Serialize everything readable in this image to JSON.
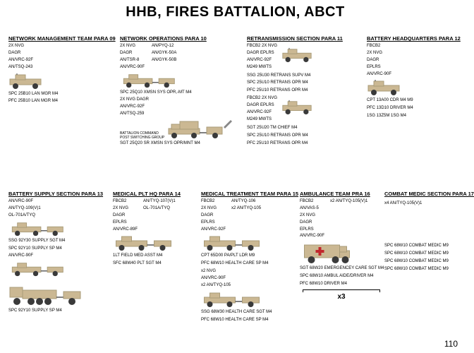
{
  "title": "HHB, FIRES BATTALION, ABCT",
  "page_number": "110",
  "colors": {
    "vehicle_body": "#cbb893",
    "vehicle_shadow": "#a89b78",
    "wheel": "#3a3a3a",
    "cross": "#c1272d",
    "bg": "#ffffff",
    "text": "#000000"
  },
  "sections": {
    "nmt": {
      "heading": "NETWORK MANAGEMENT TEAM PARA 09",
      "equip": [
        "2X NVG",
        "DAGR",
        "AN/VRC-92F",
        "AN/TSQ-243"
      ],
      "units": [
        {
          "vehicle": "humvee",
          "pers": [
            "SPC 25B10 LAN MGR M4",
            "PFC 25B10 LAN MGR M4"
          ]
        }
      ]
    },
    "nops": {
      "heading": "NETWORK OPERATIONS  PARA 10",
      "equip_a": [
        "2X NVG",
        "DAGR",
        "AN/TSR-8",
        "AN/VRC-90F"
      ],
      "equip_b": [
        "AN/PYQ-12",
        "AN/GYK-50A",
        "AN/GYK-50B"
      ],
      "units": [
        {
          "vehicle": "humvee_trailer",
          "pers": [
            "SPC 25Q10 XMSN SYS OPR,-MT M4"
          ]
        }
      ],
      "equip_c": [
        "2X NVG   DAGR",
        "AN/VRC-92F",
        "AN/TSQ-259"
      ],
      "label_c": "BATTALION COMMAND\nPOST SWITCHING GROUP",
      "units2": [
        {
          "vehicle": "humvee_shelter_trailer",
          "pers": [
            "SGT 25Q20 SR XMSN SYS OPR/MNT M4"
          ]
        }
      ]
    },
    "retrans": {
      "heading": "RETRANSMISSION SECTION  PARA 11",
      "blocks": [
        {
          "equip": [
            "FBCB2   2X NVG",
            "DAGR   EPLRS",
            "AN/VRC-92F",
            "M249   MWTS"
          ],
          "vehicle": "humvee",
          "pers": [
            "SSG 25U30 RETRANS SUPV M4",
            "SPC 25U10 RETRANS OPR M4",
            "PFC 25U10 RETRANS OPR M4"
          ]
        },
        {
          "equip": [
            "FBCB2   2X NVG",
            "DAGR   EPLRS",
            "AN/VRC-92F",
            "M249   MWTS"
          ],
          "vehicle": "humvee",
          "pers": [
            "SGT 25U20 TM CHIEF M4",
            "SPC 25U10 RETRANS OPR M4",
            "PFC 25U10 RETRANS OPR M4"
          ]
        }
      ]
    },
    "bhq": {
      "heading": "BATTERY HEADQUARTERS  PARA 12",
      "equip": [
        "FBCB2",
        "2X NVG",
        "DAGR",
        "EPLRS",
        "AN/VRC-90F"
      ],
      "units": [
        {
          "vehicle": "humvee",
          "pers": [
            "CPT 13A00 CDR M4 M9",
            "PFC 13D10 DRIVER M4",
            "1SG 13Z5M 1SG M4"
          ]
        }
      ]
    },
    "supply": {
      "heading": "BATTERY SUPPLY SECTION  PARA 13",
      "block_a": {
        "equip": [
          "AN/VRC-90F",
          "AN/TYQ-109(V)1",
          "OL-701A/TYQ"
        ],
        "vehicle": "humvee_trailer",
        "pers": [
          "SSG 92Y30 SUPPLY SGT M4",
          "SPC 92Y10 SUPPLY SP M4"
        ]
      },
      "block_b": {
        "equip": [
          "AN/VRC-90F"
        ],
        "vehicle": "humvee_trailer",
        "pers": []
      },
      "block_c": {
        "equip": [],
        "vehicle": "truck_trailer",
        "pers": [
          "SPC 92Y10 SUPPLY SP M4"
        ]
      }
    },
    "medplt": {
      "heading": "MEDICAL PLT HQ  PARA 14",
      "equip_a": [
        "FBCB2",
        "2X NVG",
        "DAGR",
        "EPLRS",
        "AN/VRC-89F"
      ],
      "equip_b": [
        "AN/TYQ-107(V)1",
        "OL-701A/TYQ"
      ],
      "units": [
        {
          "vehicle": "humvee_trailer",
          "pers": [
            "1LT FIELD MED ASST M4",
            "SFC 68W40 PLT SGT M4"
          ]
        }
      ]
    },
    "medtrt": {
      "heading": "MEDICAL TREATMENT TEAM  PARA 15",
      "equip_a": [
        "FBCB2",
        "2X NVG",
        "DAGR",
        "EPLRS",
        "AN/VRC-92F"
      ],
      "equip_b": [
        "AN/TYQ-106",
        "x2 AN/TYQ-105"
      ],
      "units": [
        {
          "vehicle": "humvee_trailer",
          "pers": [
            "CPT 65D00 PA/PLT LDR M9",
            "PFC 68W10 HEALTH CARE SP M4"
          ]
        }
      ],
      "equip_c": [
        "x2 NVG",
        "AN/VRC-90F",
        "x2 AN/TYQ-105"
      ],
      "units2": [
        {
          "vehicle": "humvee_trailer",
          "pers": [
            "SSG 68W30 HEALTH CARE SGT M4",
            "PFC 68W10 HEALTH CARE SP M4"
          ]
        }
      ]
    },
    "amb": {
      "heading": "AMBULANCE TEAM  PRA 16",
      "equip_a": [
        "FBCB2",
        "AN/VAS-5",
        "2X NVG",
        "DAGR",
        "EPLRS",
        "AN/VRC-90F"
      ],
      "equip_b": [
        "x2 AN/TYQ-105(V)1"
      ],
      "units": [
        {
          "vehicle": "ambulance",
          "pers": [
            "SGT 68W20 EMERGENCEY CARE SGT M4",
            "SPC 68W10 AMBUL AIDE/DRIVER M4",
            "PFC 68W10 DRIVER M4"
          ]
        }
      ],
      "multiplier": "x3"
    },
    "medic": {
      "heading": "COMBAT MEDIC SECTION  PARA 17",
      "equip": [
        "x4 AN/TYQ-105(V)1"
      ],
      "pers": [
        "SPC 68W10 COMBAT MEDIC M9",
        "SPC 68W10 COMBAT MEDIC M9",
        "SPC 68W10 COMBAT MEDIC M9",
        "SPC 68W10 COMBAT MEDIC M9"
      ]
    }
  }
}
